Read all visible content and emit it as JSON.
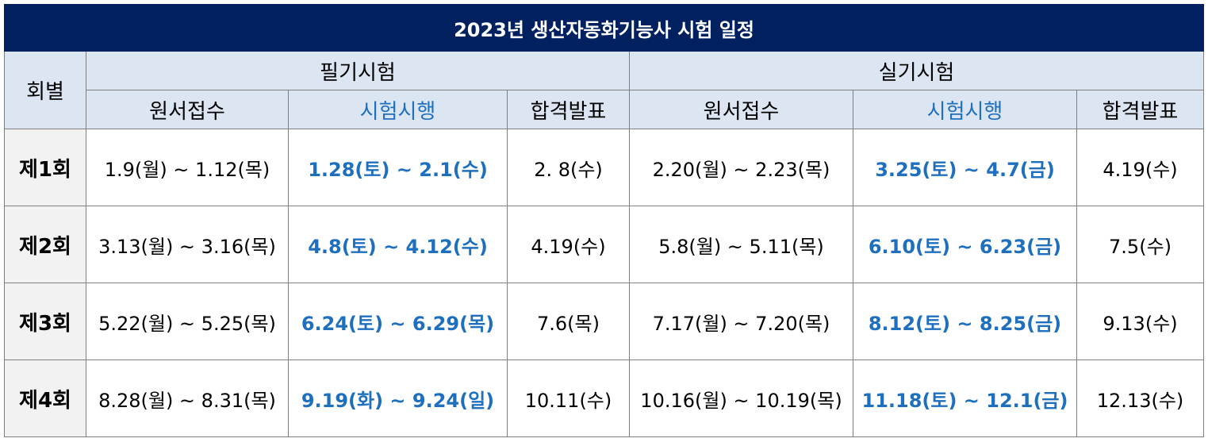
{
  "title": "2023년 생산자동화기능사 시험 일정",
  "header": {
    "round": "회별",
    "written": "필기시험",
    "practical": "실기시험",
    "cols": {
      "application": "원서접수",
      "exam": "시험시행",
      "result": "합격발표"
    }
  },
  "rows": [
    {
      "round": "제1회",
      "written": {
        "application": "1.9(월) ~ 1.12(목)",
        "exam": "1.28(토) ~ 2.1(수)",
        "result": "2. 8(수)"
      },
      "practical": {
        "application": "2.20(월) ~ 2.23(목)",
        "exam": "3.25(토) ~ 4.7(금)",
        "result": "4.19(수)"
      }
    },
    {
      "round": "제2회",
      "written": {
        "application": "3.13(월) ~ 3.16(목)",
        "exam": "4.8(토) ~ 4.12(수)",
        "result": "4.19(수)"
      },
      "practical": {
        "application": "5.8(월) ~ 5.11(목)",
        "exam": "6.10(토) ~ 6.23(금)",
        "result": "7.5(수)"
      }
    },
    {
      "round": "제3회",
      "written": {
        "application": "5.22(월) ~ 5.25(목)",
        "exam": "6.24(토) ~ 6.29(목)",
        "result": "7.6(목)"
      },
      "practical": {
        "application": "7.17(월) ~ 7.20(목)",
        "exam": "8.12(토) ~ 8.25(금)",
        "result": "9.13(수)"
      }
    },
    {
      "round": "제4회",
      "written": {
        "application": "8.28(월) ~ 8.31(목)",
        "exam": "9.19(화) ~ 9.24(일)",
        "result": "10.11(수)"
      },
      "practical": {
        "application": "10.16(월) ~ 10.19(목)",
        "exam": "11.18(토) ~ 12.1(금)",
        "result": "12.13(수)"
      }
    }
  ],
  "colors": {
    "title_bg": "#002060",
    "header_bg": "#dce6f2",
    "accent_blue": "#1f6fbf",
    "round_bg": "#f2f2f2"
  }
}
